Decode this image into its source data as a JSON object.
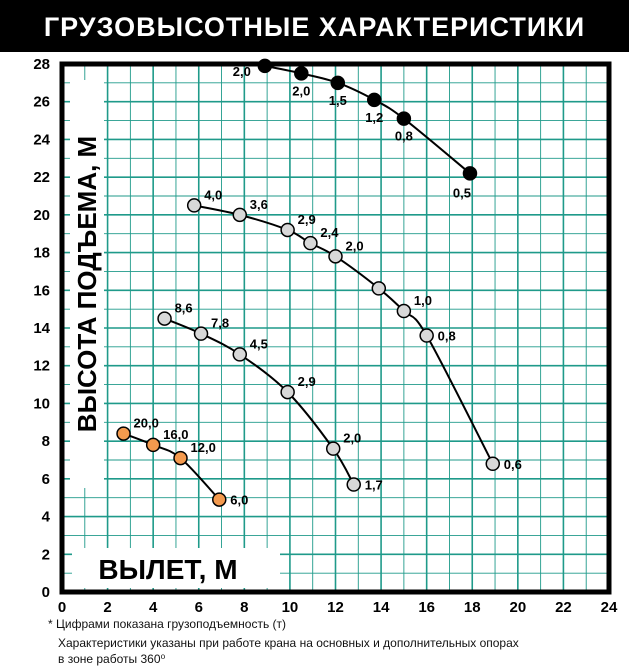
{
  "title": "ГРУЗОВЫСОТНЫЕ ХАРАКТЕРИСТИКИ",
  "footnotes": {
    "line1": "* Цифрами показана грузоподъемность (т)",
    "line2": "Характеристики указаны при работе крана на основных и дополнительных опорах",
    "line3": "в зоне работы 360⁰"
  },
  "chart_data": {
    "type": "scatter",
    "xlabel": "ВЫЛЕТ, М",
    "ylabel": "ВЫСОТА ПОДЪЕМА, М",
    "xlim": [
      0,
      24
    ],
    "ylim": [
      0,
      28
    ],
    "xticks": [
      "0",
      "2",
      "4",
      "6",
      "8",
      "10",
      "12",
      "14",
      "16",
      "18",
      "20",
      "22",
      "24"
    ],
    "yticks": [
      "0",
      "2",
      "4",
      "6",
      "8",
      "10",
      "12",
      "14",
      "16",
      "18",
      "20",
      "22",
      "24",
      "26",
      "28"
    ],
    "grid": true,
    "colors": {
      "grid": "#1f9a8a",
      "black_series": "#000000",
      "gray_series": "#d8d8d8",
      "orange_series": "#f39a4e"
    },
    "series": [
      {
        "color": "black",
        "points": [
          {
            "x": 8.9,
            "y": 27.9,
            "label": "2,0"
          },
          {
            "x": 10.5,
            "y": 27.5,
            "label": "2,0"
          },
          {
            "x": 12.1,
            "y": 27.0,
            "label": "1,5"
          },
          {
            "x": 13.7,
            "y": 26.1,
            "label": "1,2"
          },
          {
            "x": 15.0,
            "y": 25.1,
            "label": "0,8"
          },
          {
            "x": 17.9,
            "y": 22.2,
            "label": "0,5"
          }
        ]
      },
      {
        "color": "gray",
        "points": [
          {
            "x": 5.8,
            "y": 20.5,
            "label": "4,0"
          },
          {
            "x": 7.8,
            "y": 20.0,
            "label": "3,6"
          },
          {
            "x": 9.9,
            "y": 19.2,
            "label": "2,9"
          },
          {
            "x": 10.9,
            "y": 18.5,
            "label": "2,4"
          },
          {
            "x": 12.0,
            "y": 17.8,
            "label": "2,0"
          },
          {
            "x": 13.9,
            "y": 16.1,
            "label": ""
          },
          {
            "x": 15.0,
            "y": 14.9,
            "label": "1,0"
          },
          {
            "x": 16.0,
            "y": 13.6,
            "label": "0,8"
          },
          {
            "x": 18.9,
            "y": 6.8,
            "label": "0,6"
          }
        ]
      },
      {
        "color": "gray",
        "points": [
          {
            "x": 4.5,
            "y": 14.5,
            "label": "8,6"
          },
          {
            "x": 6.1,
            "y": 13.7,
            "label": "7,8"
          },
          {
            "x": 7.8,
            "y": 12.6,
            "label": "4,5"
          },
          {
            "x": 9.9,
            "y": 10.6,
            "label": "2,9"
          },
          {
            "x": 11.9,
            "y": 7.6,
            "label": "2,0"
          },
          {
            "x": 12.8,
            "y": 5.7,
            "label": "1,7"
          }
        ]
      },
      {
        "color": "orange",
        "points": [
          {
            "x": 2.7,
            "y": 8.4,
            "label": "20,0"
          },
          {
            "x": 4.0,
            "y": 7.8,
            "label": "16,0"
          },
          {
            "x": 5.2,
            "y": 7.1,
            "label": "12,0"
          },
          {
            "x": 6.9,
            "y": 4.9,
            "label": "6,0"
          }
        ]
      }
    ]
  }
}
